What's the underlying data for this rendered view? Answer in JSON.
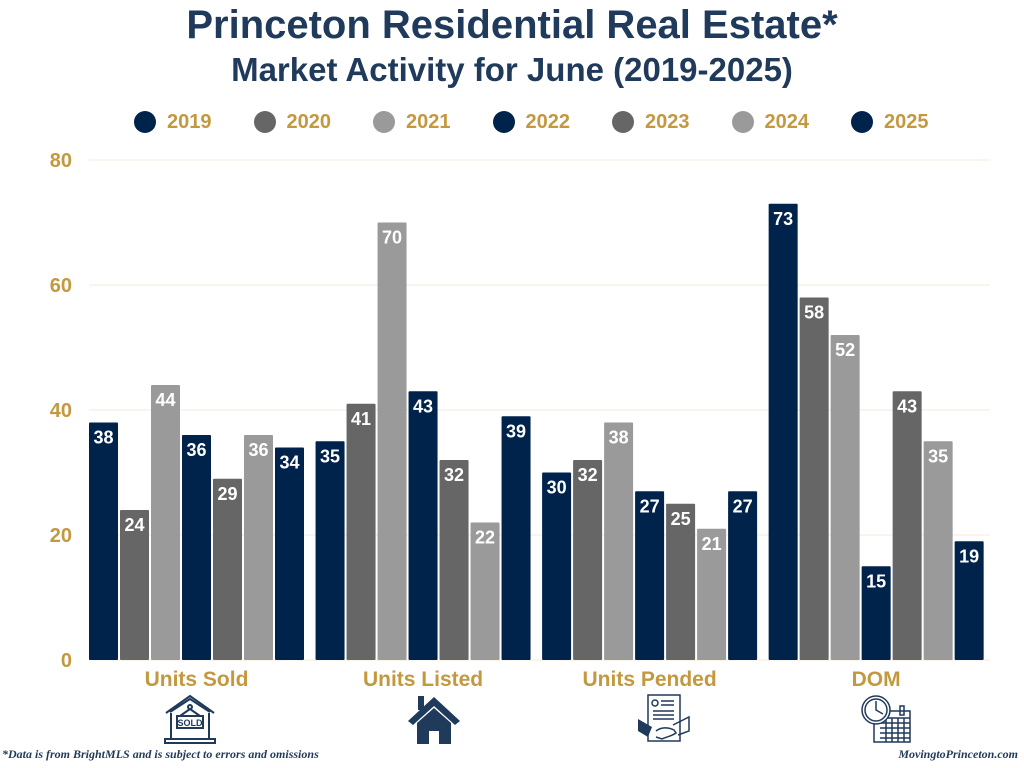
{
  "header": {
    "title": "Princeton Residential Real Estate*",
    "subtitle": "Market Activity for June (2019-2025)"
  },
  "colors": {
    "navy": "#00234b",
    "dark_gray": "#666666",
    "light_gray": "#9a9a9a",
    "gold": "#c4983f",
    "title": "#1f3a5a",
    "grid": "#f3ead9",
    "icon": "#1f3a5a"
  },
  "footer": {
    "disclaimer": "*Data is from BrightMLS and is subject to errors and omissions",
    "website": "MovingtoPrinceton.com"
  },
  "icons": [
    {
      "category": "Units Sold",
      "name": "sold-house-icon"
    },
    {
      "category": "Units Listed",
      "name": "house-icon"
    },
    {
      "category": "Units Pended",
      "name": "handshake-contract-icon"
    },
    {
      "category": "DOM",
      "name": "clock-calendar-icon"
    }
  ],
  "chart_data": {
    "type": "bar",
    "title": "Princeton Residential Real Estate*",
    "subtitle": "Market Activity for June (2019-2025)",
    "xlabel": "",
    "ylabel": "",
    "ylim": [
      0,
      80
    ],
    "yticks": [
      0,
      20,
      40,
      60,
      80
    ],
    "grid": true,
    "legend_position": "top",
    "categories": [
      "Units Sold",
      "Units Listed",
      "Units Pended",
      "DOM"
    ],
    "series": [
      {
        "name": "2019",
        "color": "#00234b",
        "values": [
          38,
          35,
          30,
          73
        ]
      },
      {
        "name": "2020",
        "color": "#666666",
        "values": [
          24,
          41,
          32,
          58
        ]
      },
      {
        "name": "2021",
        "color": "#9a9a9a",
        "values": [
          44,
          70,
          38,
          52
        ]
      },
      {
        "name": "2022",
        "color": "#00234b",
        "values": [
          36,
          43,
          27,
          15
        ]
      },
      {
        "name": "2023",
        "color": "#666666",
        "values": [
          29,
          32,
          25,
          43
        ]
      },
      {
        "name": "2024",
        "color": "#9a9a9a",
        "values": [
          36,
          22,
          21,
          35
        ]
      },
      {
        "name": "2025",
        "color": "#00234b",
        "values": [
          34,
          39,
          27,
          19
        ]
      }
    ],
    "data_labels": true
  }
}
